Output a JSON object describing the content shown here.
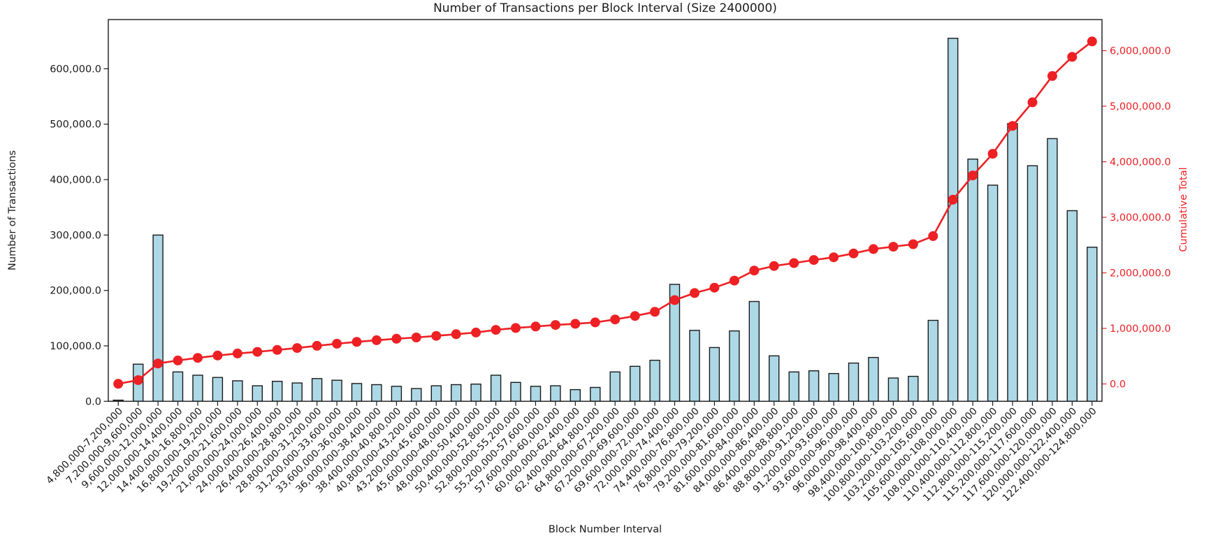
{
  "chart_data": {
    "type": "bar",
    "title": "Number of Transactions per Block Interval (Size 2400000)",
    "xlabel": "Block Number Interval",
    "grid": false,
    "legend": "none",
    "colors": {
      "bar_fill": "#add8e6",
      "bar_edge": "#1a1a1a",
      "line": "#ed2024",
      "axis": "#1a1a1a",
      "right_axis_text": "#ed2024"
    },
    "categories": [
      "4,800,000-7,200,000",
      "7,200,000-9,600,000",
      "9,600,000-12,000,000",
      "12,000,000-14,400,000",
      "14,400,000-16,800,000",
      "16,800,000-19,200,000",
      "19,200,000-21,600,000",
      "21,600,000-24,000,000",
      "24,000,000-26,400,000",
      "26,400,000-28,800,000",
      "28,800,000-31,200,000",
      "31,200,000-33,600,000",
      "33,600,000-36,000,000",
      "36,000,000-38,400,000",
      "38,400,000-40,800,000",
      "40,800,000-43,200,000",
      "43,200,000-45,600,000",
      "45,600,000-48,000,000",
      "48,000,000-50,400,000",
      "50,400,000-52,800,000",
      "52,800,000-55,200,000",
      "55,200,000-57,600,000",
      "57,600,000-60,000,000",
      "60,000,000-62,400,000",
      "62,400,000-64,800,000",
      "64,800,000-67,200,000",
      "67,200,000-69,600,000",
      "69,600,000-72,000,000",
      "72,000,000-74,400,000",
      "74,400,000-76,800,000",
      "76,800,000-79,200,000",
      "79,200,000-81,600,000",
      "81,600,000-84,000,000",
      "84,000,000-86,400,000",
      "86,400,000-88,800,000",
      "88,800,000-91,200,000",
      "91,200,000-93,600,000",
      "93,600,000-96,000,000",
      "96,000,000-98,400,000",
      "98,400,000-100,800,000",
      "100,800,000-103,200,000",
      "103,200,000-105,600,000",
      "105,600,000-108,000,000",
      "108,000,000-110,400,000",
      "110,400,000-112,800,000",
      "112,800,000-115,200,000",
      "115,200,000-117,600,000",
      "117,600,000-120,000,000",
      "120,000,000-122,400,000",
      "122,400,000-124,800,000"
    ],
    "series": [
      {
        "name": "Number of Transactions",
        "kind": "bar",
        "axis": "left",
        "values": [
          2000,
          67000,
          300000,
          53000,
          47000,
          43000,
          37000,
          28000,
          36000,
          33000,
          41000,
          38000,
          32000,
          30000,
          27000,
          23000,
          28000,
          30000,
          31000,
          47000,
          34000,
          27000,
          28000,
          21000,
          25000,
          53000,
          63000,
          74000,
          211000,
          128000,
          97000,
          127000,
          180000,
          82000,
          53000,
          55000,
          50000,
          69000,
          79000,
          42000,
          45000,
          146000,
          655000,
          437000,
          390000,
          501000,
          425000,
          474000,
          344000,
          278000
        ]
      },
      {
        "name": "Cumulative Total",
        "kind": "line",
        "axis": "right",
        "values": [
          2000,
          69000,
          369000,
          422000,
          469000,
          512000,
          549000,
          577000,
          613000,
          646000,
          687000,
          725000,
          757000,
          787000,
          814000,
          837000,
          865000,
          895000,
          926000,
          973000,
          1007000,
          1034000,
          1062000,
          1083000,
          1108000,
          1161000,
          1224000,
          1298000,
          1509000,
          1637000,
          1734000,
          1861000,
          2041000,
          2123000,
          2176000,
          2231000,
          2281000,
          2350000,
          2429000,
          2471000,
          2516000,
          2662000,
          3317000,
          3754000,
          4144000,
          4645000,
          5070000,
          5544000,
          5888000,
          6166000
        ]
      }
    ],
    "left_axis": {
      "label": "Number of Transactions",
      "tick_labels": [
        "0.0",
        "100,000.0",
        "200,000.0",
        "300,000.0",
        "400,000.0",
        "500,000.0",
        "600,000.0"
      ],
      "tick_values": [
        0,
        100000,
        200000,
        300000,
        400000,
        500000,
        600000
      ],
      "lim": [
        0,
        688800
      ]
    },
    "right_axis": {
      "label": "Cumulative Total",
      "tick_labels": [
        "0.0",
        "1,000,000.0",
        "2,000,000.0",
        "3,000,000.0",
        "4,000,000.0",
        "5,000,000.0",
        "6,000,000.0"
      ],
      "tick_values": [
        0,
        1000000,
        2000000,
        3000000,
        4000000,
        5000000,
        6000000
      ],
      "lim": [
        -312000,
        6560000
      ]
    }
  }
}
